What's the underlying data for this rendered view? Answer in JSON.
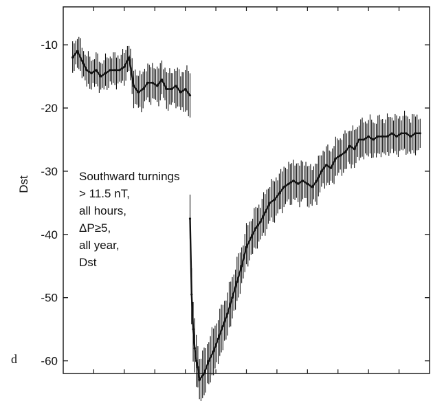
{
  "chart_data": {
    "type": "line",
    "panel_letter": "d",
    "ylabel": "Dst",
    "xlabel": "",
    "ylim": [
      -62,
      -4
    ],
    "y_ticks": [
      -10,
      -20,
      -30,
      -40,
      -50,
      -60
    ],
    "y_tick_labels": [
      "-10",
      "-20",
      "-30",
      "-40",
      "-50",
      "-60"
    ],
    "x_minor_tick_count": 12,
    "grid": false,
    "annotation": [
      "Southward turnings",
      "> 11.5 nT,",
      "all hours,",
      "ΔP≥5,",
      "all year,",
      "Dst"
    ],
    "color": "#111111",
    "series": [
      {
        "x": [
          -75,
          -72,
          -69,
          -66,
          -63,
          -60,
          -57,
          -54,
          -51,
          -48,
          -45,
          -42,
          -39,
          -36,
          -33,
          -30,
          -27,
          -24,
          -21,
          -18,
          -15,
          -12,
          -9,
          -6,
          -3,
          0
        ],
        "values": [
          -12,
          -11,
          -12.5,
          -14,
          -14.5,
          -14,
          -15,
          -14.5,
          -14,
          -14,
          -14,
          -13.5,
          -12,
          -16.5,
          -17.5,
          -17,
          -16,
          -16,
          -16.5,
          -15.5,
          -17,
          -17,
          -16.5,
          -17.5,
          -17,
          -18
        ],
        "error": [
          1.8,
          1.8,
          1.8,
          1.8,
          1.8,
          1.8,
          1.8,
          1.8,
          1.8,
          1.8,
          1.8,
          1.8,
          1.8,
          2.2,
          2.2,
          2.2,
          2.2,
          2.2,
          2.2,
          2.2,
          2.2,
          2.2,
          2.2,
          2.5,
          2.5,
          3.5
        ]
      },
      {
        "x": [
          0,
          1,
          2,
          3,
          4,
          5,
          6,
          9,
          12,
          15,
          18,
          21,
          24,
          27,
          30,
          33,
          36,
          39,
          42,
          45,
          48,
          51,
          54,
          57,
          60,
          63,
          66,
          69,
          72,
          75,
          78,
          81,
          84,
          87,
          90,
          93,
          96,
          99,
          102,
          105,
          108,
          111,
          114,
          117,
          120,
          123,
          126,
          129,
          132,
          135,
          138,
          141,
          144,
          147
        ],
        "values": [
          -37.5,
          -49.5,
          -55,
          -58,
          -60,
          -61,
          -63,
          -62,
          -60,
          -58.5,
          -56.5,
          -54.5,
          -52.5,
          -50,
          -47.5,
          -45,
          -42,
          -40.5,
          -39,
          -38,
          -36.5,
          -35,
          -34.5,
          -33.5,
          -32.5,
          -32,
          -31.5,
          -32,
          -31.5,
          -32,
          -32.5,
          -31.5,
          -30,
          -29,
          -29.5,
          -28,
          -27.5,
          -27,
          -26,
          -26.5,
          -25,
          -25,
          -24.5,
          -25,
          -24.5,
          -24.5,
          -24.5,
          -24,
          -24.5,
          -24,
          -24,
          -24.5,
          -24,
          -24
        ],
        "error": [
          3.5,
          4,
          4,
          3.5,
          3.5,
          3,
          3,
          3,
          3,
          3,
          3,
          3,
          2.8,
          2.8,
          2.8,
          2.5,
          2.5,
          2.5,
          2.5,
          2.5,
          2.5,
          2.5,
          2.5,
          2.5,
          2.5,
          2.5,
          2.5,
          2.5,
          2.5,
          2.5,
          2.5,
          2.5,
          2.3,
          2.3,
          2.3,
          2.3,
          2.3,
          2.3,
          2.3,
          2.3,
          2.3,
          2.3,
          2.3,
          2.3,
          2.3,
          2.3,
          2.3,
          2.3,
          2.3,
          2.3,
          2.3,
          2.3,
          2.3,
          2.3
        ]
      }
    ]
  }
}
